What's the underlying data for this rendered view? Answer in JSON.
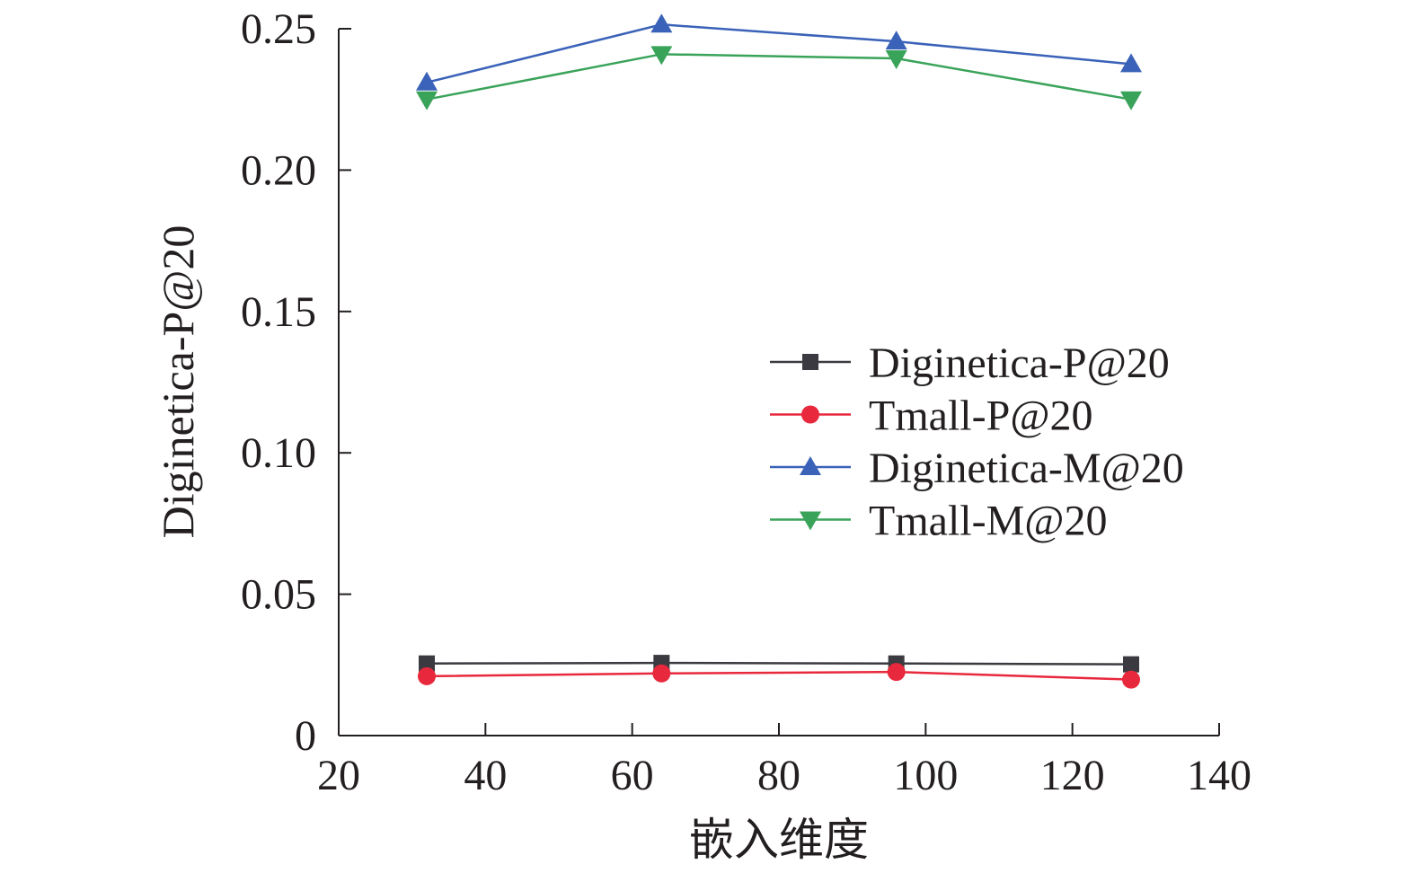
{
  "chart_data": {
    "type": "line",
    "title": "",
    "xlabel": "嵌入维度",
    "ylabel": "Diginetica-P@20",
    "xlim": [
      20,
      140
    ],
    "ylim": [
      0,
      0.25
    ],
    "xticks": [
      20,
      40,
      60,
      80,
      100,
      120,
      140
    ],
    "xtick_labels": [
      "20",
      "40",
      "60",
      "80",
      "100",
      "120",
      "140"
    ],
    "yticks": [
      0,
      0.05,
      0.1,
      0.15,
      0.2,
      0.25
    ],
    "ytick_labels": [
      "0",
      "0.05",
      "0.10",
      "0.15",
      "0.20",
      "0.25"
    ],
    "x": [
      32,
      64,
      96,
      128
    ],
    "legend_position": "center-right",
    "grid": false,
    "series": [
      {
        "name": "Diginetica-P@20",
        "marker": "square",
        "color": "#3a3a40",
        "values": [
          0.0255,
          0.0257,
          0.0255,
          0.0252
        ]
      },
      {
        "name": "Tmall-P@20",
        "marker": "circle",
        "color": "#e8283c",
        "values": [
          0.021,
          0.022,
          0.0225,
          0.0198
        ]
      },
      {
        "name": "Diginetica-M@20",
        "marker": "triangle-up",
        "color": "#3a62b8",
        "values": [
          0.231,
          0.2515,
          0.2455,
          0.2375
        ]
      },
      {
        "name": "Tmall-M@20",
        "marker": "triangle-down",
        "color": "#3aa35a",
        "values": [
          0.225,
          0.241,
          0.2395,
          0.225
        ]
      }
    ]
  }
}
